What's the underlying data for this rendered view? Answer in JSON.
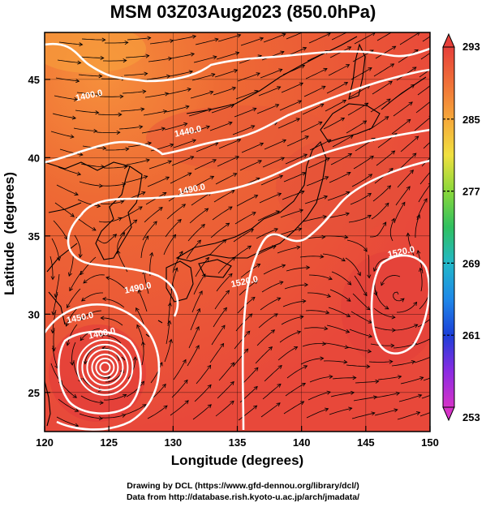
{
  "title": "MSM 03Z03Aug2023 (850.0hPa)",
  "x_axis": {
    "label": "Longitude (degrees)",
    "range": [
      120,
      150
    ],
    "ticks": [
      "120",
      "125",
      "130",
      "135",
      "140",
      "145",
      "150"
    ]
  },
  "y_axis": {
    "label": "Latitude  (degrees)",
    "range": [
      22.5,
      48
    ],
    "ticks": [
      "25",
      "30",
      "35",
      "40",
      "45"
    ]
  },
  "colorbar": {
    "range": [
      253,
      293
    ],
    "ticks": [
      "293",
      "285",
      "277",
      "269",
      "261",
      "253"
    ],
    "colors": [
      "#d633c8",
      "#8a2be2",
      "#1c3fd8",
      "#1e88e8",
      "#22b8c8",
      "#30c060",
      "#8ad83a",
      "#f0e040",
      "#f6a83a",
      "#f07038",
      "#e6403a"
    ]
  },
  "contours": [
    {
      "label": "1400.0",
      "lon": 123.5,
      "lat": 43.8
    },
    {
      "label": "1440.0",
      "lon": 131.2,
      "lat": 41.5
    },
    {
      "label": "1490.0",
      "lon": 131.5,
      "lat": 37.8
    },
    {
      "label": "1490.0",
      "lon": 127.3,
      "lat": 31.5
    },
    {
      "label": "1520.0",
      "lon": 135.6,
      "lat": 31.9
    },
    {
      "label": "1520.0",
      "lon": 147.8,
      "lat": 33.8
    },
    {
      "label": "1450.0",
      "lon": 122.8,
      "lat": 29.6
    },
    {
      "label": "1400.0",
      "lon": 124.5,
      "lat": 28.6
    }
  ],
  "typhoon_center": {
    "lon": 124.7,
    "lat": 26.6
  },
  "low_center": {
    "lon": 147.5,
    "lat": 31.2
  },
  "credits": {
    "line1": "Drawing by DCL (https://www.gfd-dennou.org/library/dcl/)",
    "line2": "Data from http://database.rish.kyoto-u.ac.jp/arch/jmadata/"
  }
}
